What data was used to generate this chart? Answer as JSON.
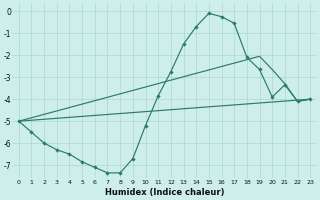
{
  "xlabel": "Humidex (Indice chaleur)",
  "bg_color": "#cdeee9",
  "grid_color": "#aad8d0",
  "line_color": "#2d7a6a",
  "xlim": [
    -0.5,
    23.5
  ],
  "ylim": [
    -7.6,
    0.35
  ],
  "xticks": [
    0,
    1,
    2,
    3,
    4,
    5,
    6,
    7,
    8,
    9,
    10,
    11,
    12,
    13,
    14,
    15,
    16,
    17,
    18,
    19,
    20,
    21,
    22,
    23
  ],
  "yticks": [
    0,
    -1,
    -2,
    -3,
    -4,
    -5,
    -6,
    -7
  ],
  "line1_x": [
    0,
    1,
    2,
    3,
    4,
    5,
    6,
    7,
    8,
    9,
    10,
    11,
    12,
    13,
    14,
    15,
    16,
    17,
    18,
    19,
    20,
    21,
    22,
    23
  ],
  "line1_y": [
    -5.0,
    -5.5,
    -6.0,
    -6.3,
    -6.5,
    -6.85,
    -7.1,
    -7.35,
    -7.35,
    -6.7,
    -5.2,
    -3.85,
    -2.75,
    -1.5,
    -0.7,
    -0.1,
    -0.25,
    -0.55,
    -2.1,
    -2.65,
    -3.9,
    -3.35,
    -4.1,
    -4.0
  ],
  "line2_x": [
    0,
    23
  ],
  "line2_y": [
    -5.0,
    -4.0
  ],
  "line3_x": [
    0,
    19,
    20,
    21,
    22,
    23
  ],
  "line3_y": [
    -5.0,
    -2.05,
    -2.65,
    -3.3,
    -4.1,
    -4.0
  ]
}
